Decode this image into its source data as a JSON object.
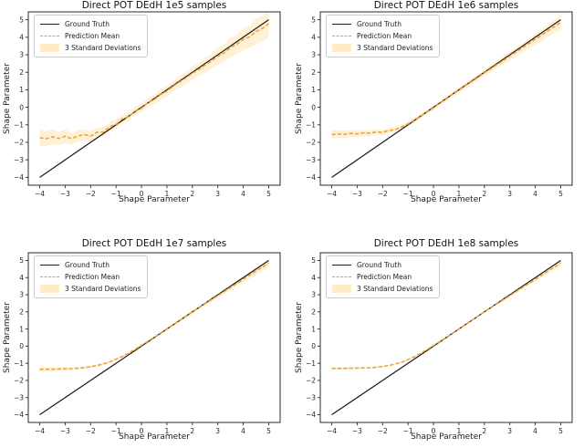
{
  "figure": {
    "background": "#ffffff",
    "xlabel": "Shape Parameter",
    "ylabel": "Shape Parameter",
    "colors": {
      "ground_truth": "#1a1a1a",
      "prediction_mean": "#e8a23a",
      "band_fill": "#ffa600",
      "band_opacity": 0.16,
      "tick_text": "#262626"
    },
    "legend": {
      "items": [
        {
          "label": "Ground Truth",
          "swatch": "solid-line-swatch"
        },
        {
          "label": "Prediction Mean",
          "swatch": "dashed-line-swatch"
        },
        {
          "label": "3 Standard Deviations",
          "swatch": "patch-swatch"
        }
      ]
    }
  },
  "chart_data": [
    {
      "type": "line",
      "title": "Direct POT DEdH 1e5 samples",
      "xlabel": "Shape Parameter",
      "ylabel": "Shape Parameter",
      "xlim": [
        -4.45,
        5.45
      ],
      "ylim": [
        -4.45,
        5.45
      ],
      "xticks": [
        -4,
        -3,
        -2,
        -1,
        0,
        1,
        2,
        3,
        4,
        5
      ],
      "yticks": [
        -4,
        -3,
        -2,
        -1,
        0,
        1,
        2,
        3,
        4,
        5
      ],
      "grid": false,
      "legend_position": "upper left",
      "series": [
        {
          "name": "Ground Truth",
          "style": "solid",
          "x": [
            -4,
            5
          ],
          "y": [
            -4,
            5
          ]
        },
        {
          "name": "Prediction Mean",
          "style": "dashed",
          "x": [
            -4,
            -3.75,
            -3.5,
            -3.25,
            -3,
            -2.75,
            -2.5,
            -2.25,
            -2,
            -1.75,
            -1.5,
            -1.25,
            -1,
            -0.75,
            -0.5,
            -0.25,
            0,
            0.25,
            0.5,
            0.75,
            1,
            1.25,
            1.5,
            1.75,
            2,
            2.25,
            2.5,
            2.75,
            3,
            3.25,
            3.5,
            3.75,
            4,
            4.25,
            4.5,
            4.75,
            5
          ],
          "y": [
            -1.73,
            -1.8,
            -1.69,
            -1.78,
            -1.65,
            -1.79,
            -1.64,
            -1.56,
            -1.64,
            -1.43,
            -1.41,
            -1.1,
            -0.97,
            -0.65,
            -0.53,
            -0.21,
            -0.06,
            0.27,
            0.44,
            0.73,
            0.92,
            1.21,
            1.45,
            1.68,
            1.95,
            2.15,
            2.42,
            2.63,
            2.92,
            3.1,
            3.42,
            3.6,
            3.88,
            4.02,
            4.32,
            4.5,
            4.78
          ]
        },
        {
          "name": "3 Standard Deviations",
          "style": "band",
          "x": [
            -4,
            -3.75,
            -3.5,
            -3.25,
            -3,
            -2.75,
            -2.5,
            -2.25,
            -2,
            -1.75,
            -1.5,
            -1.25,
            -1,
            -0.75,
            -0.5,
            -0.25,
            0,
            0.25,
            0.5,
            0.75,
            1,
            1.25,
            1.5,
            1.75,
            2,
            2.25,
            2.5,
            2.75,
            3,
            3.25,
            3.5,
            3.75,
            4,
            4.25,
            4.5,
            4.75,
            5
          ],
          "half_width": [
            0.5,
            0.42,
            0.44,
            0.36,
            0.39,
            0.32,
            0.34,
            0.29,
            0.31,
            0.26,
            0.29,
            0.25,
            0.27,
            0.24,
            0.26,
            0.24,
            0.26,
            0.25,
            0.28,
            0.27,
            0.3,
            0.29,
            0.34,
            0.33,
            0.38,
            0.37,
            0.43,
            0.42,
            0.49,
            0.48,
            0.56,
            0.55,
            0.64,
            0.63,
            0.72,
            0.73,
            0.82
          ]
        }
      ]
    },
    {
      "type": "line",
      "title": "Direct POT DEdH 1e6 samples",
      "xlabel": "Shape Parameter",
      "ylabel": "Shape Parameter",
      "xlim": [
        -4.45,
        5.45
      ],
      "ylim": [
        -4.45,
        5.45
      ],
      "xticks": [
        -4,
        -3,
        -2,
        -1,
        0,
        1,
        2,
        3,
        4,
        5
      ],
      "yticks": [
        -4,
        -3,
        -2,
        -1,
        0,
        1,
        2,
        3,
        4,
        5
      ],
      "grid": false,
      "legend_position": "upper left",
      "series": [
        {
          "name": "Ground Truth",
          "style": "solid",
          "x": [
            -4,
            5
          ],
          "y": [
            -4,
            5
          ]
        },
        {
          "name": "Prediction Mean",
          "style": "dashed",
          "x": [
            -4,
            -3.75,
            -3.5,
            -3.25,
            -3,
            -2.75,
            -2.5,
            -2.25,
            -2,
            -1.75,
            -1.5,
            -1.25,
            -1,
            -0.75,
            -0.5,
            -0.25,
            0,
            0.25,
            0.5,
            0.75,
            1,
            1.25,
            1.5,
            1.75,
            2,
            2.25,
            2.5,
            2.75,
            3,
            3.25,
            3.5,
            3.75,
            4,
            4.25,
            4.5,
            4.75,
            5
          ],
          "y": [
            -1.56,
            -1.52,
            -1.55,
            -1.49,
            -1.52,
            -1.46,
            -1.48,
            -1.41,
            -1.43,
            -1.33,
            -1.26,
            -1.12,
            -0.95,
            -0.72,
            -0.5,
            -0.26,
            -0.03,
            0.24,
            0.48,
            0.74,
            0.98,
            1.23,
            1.47,
            1.71,
            1.97,
            2.2,
            2.45,
            2.68,
            2.93,
            3.16,
            3.4,
            3.64,
            3.89,
            4.12,
            4.37,
            4.6,
            4.85
          ]
        },
        {
          "name": "3 Standard Deviations",
          "style": "band",
          "x": [
            -4,
            -3.75,
            -3.5,
            -3.25,
            -3,
            -2.75,
            -2.5,
            -2.25,
            -2,
            -1.75,
            -1.5,
            -1.25,
            -1,
            -0.75,
            -0.5,
            -0.25,
            0,
            0.25,
            0.5,
            0.75,
            1,
            1.25,
            1.5,
            1.75,
            2,
            2.25,
            2.5,
            2.75,
            3,
            3.25,
            3.5,
            3.75,
            4,
            4.25,
            4.5,
            4.75,
            5
          ],
          "half_width": [
            0.26,
            0.21,
            0.22,
            0.19,
            0.2,
            0.17,
            0.18,
            0.15,
            0.16,
            0.14,
            0.15,
            0.13,
            0.14,
            0.13,
            0.14,
            0.12,
            0.14,
            0.13,
            0.15,
            0.14,
            0.16,
            0.15,
            0.18,
            0.17,
            0.19,
            0.19,
            0.22,
            0.22,
            0.25,
            0.25,
            0.28,
            0.29,
            0.32,
            0.33,
            0.36,
            0.37,
            0.41
          ]
        }
      ]
    },
    {
      "type": "line",
      "title": "Direct POT DEdH 1e7 samples",
      "xlabel": "Shape Parameter",
      "ylabel": "Shape Parameter",
      "xlim": [
        -4.45,
        5.45
      ],
      "ylim": [
        -4.45,
        5.45
      ],
      "xticks": [
        -4,
        -3,
        -2,
        -1,
        0,
        1,
        2,
        3,
        4,
        5
      ],
      "yticks": [
        -4,
        -3,
        -2,
        -1,
        0,
        1,
        2,
        3,
        4,
        5
      ],
      "grid": false,
      "legend_position": "upper left",
      "series": [
        {
          "name": "Ground Truth",
          "style": "solid",
          "x": [
            -4,
            5
          ],
          "y": [
            -4,
            5
          ]
        },
        {
          "name": "Prediction Mean",
          "style": "dashed",
          "x": [
            -4,
            -3.75,
            -3.5,
            -3.25,
            -3,
            -2.75,
            -2.5,
            -2.25,
            -2,
            -1.75,
            -1.5,
            -1.25,
            -1,
            -0.75,
            -0.5,
            -0.25,
            0,
            0.25,
            0.5,
            0.75,
            1,
            1.25,
            1.5,
            1.75,
            2,
            2.25,
            2.5,
            2.75,
            3,
            3.25,
            3.5,
            3.75,
            4,
            4.25,
            4.5,
            4.75,
            5
          ],
          "y": [
            -1.35,
            -1.34,
            -1.34,
            -1.33,
            -1.32,
            -1.31,
            -1.29,
            -1.25,
            -1.2,
            -1.13,
            -1.04,
            -0.92,
            -0.76,
            -0.59,
            -0.4,
            -0.18,
            0.05,
            0.28,
            0.52,
            0.76,
            1.01,
            1.25,
            1.5,
            1.75,
            2.0,
            2.24,
            2.48,
            2.71,
            2.95,
            3.19,
            3.43,
            3.66,
            3.9,
            4.14,
            4.38,
            4.61,
            4.85
          ]
        },
        {
          "name": "3 Standard Deviations",
          "style": "band",
          "x": [
            -4,
            -3.75,
            -3.5,
            -3.25,
            -3,
            -2.75,
            -2.5,
            -2.25,
            -2,
            -1.75,
            -1.5,
            -1.25,
            -1,
            -0.75,
            -0.5,
            -0.25,
            0,
            0.25,
            0.5,
            0.75,
            1,
            1.25,
            1.5,
            1.75,
            2,
            2.25,
            2.5,
            2.75,
            3,
            3.25,
            3.5,
            3.75,
            4,
            4.25,
            4.5,
            4.75,
            5
          ],
          "half_width": [
            0.13,
            0.12,
            0.11,
            0.11,
            0.1,
            0.09,
            0.08,
            0.08,
            0.07,
            0.07,
            0.07,
            0.06,
            0.06,
            0.06,
            0.06,
            0.06,
            0.06,
            0.06,
            0.07,
            0.07,
            0.07,
            0.08,
            0.08,
            0.09,
            0.1,
            0.11,
            0.11,
            0.12,
            0.13,
            0.14,
            0.16,
            0.17,
            0.18,
            0.2,
            0.21,
            0.23,
            0.24
          ]
        }
      ]
    },
    {
      "type": "line",
      "title": "Direct POT DEdH 1e8 samples",
      "xlabel": "Shape Parameter",
      "ylabel": "Shape Parameter",
      "xlim": [
        -4.45,
        5.45
      ],
      "ylim": [
        -4.45,
        5.45
      ],
      "xticks": [
        -4,
        -3,
        -2,
        -1,
        0,
        1,
        2,
        3,
        4,
        5
      ],
      "yticks": [
        -4,
        -3,
        -2,
        -1,
        0,
        1,
        2,
        3,
        4,
        5
      ],
      "grid": false,
      "legend_position": "upper left",
      "series": [
        {
          "name": "Ground Truth",
          "style": "solid",
          "x": [
            -4,
            5
          ],
          "y": [
            -4,
            5
          ]
        },
        {
          "name": "Prediction Mean",
          "style": "dashed",
          "x": [
            -4,
            -3.75,
            -3.5,
            -3.25,
            -3,
            -2.75,
            -2.5,
            -2.25,
            -2,
            -1.75,
            -1.5,
            -1.25,
            -1,
            -0.75,
            -0.5,
            -0.25,
            0,
            0.25,
            0.5,
            0.75,
            1,
            1.25,
            1.5,
            1.75,
            2,
            2.25,
            2.5,
            2.75,
            3,
            3.25,
            3.5,
            3.75,
            4,
            4.25,
            4.5,
            4.75,
            5
          ],
          "y": [
            -1.3,
            -1.3,
            -1.29,
            -1.29,
            -1.28,
            -1.27,
            -1.26,
            -1.23,
            -1.19,
            -1.13,
            -1.04,
            -0.93,
            -0.78,
            -0.61,
            -0.41,
            -0.19,
            0.04,
            0.27,
            0.51,
            0.76,
            1.0,
            1.25,
            1.5,
            1.75,
            2.0,
            2.24,
            2.48,
            2.71,
            2.95,
            3.19,
            3.43,
            3.66,
            3.9,
            4.14,
            4.38,
            4.61,
            4.85
          ]
        },
        {
          "name": "3 Standard Deviations",
          "style": "band",
          "x": [
            -4,
            -3.75,
            -3.5,
            -3.25,
            -3,
            -2.75,
            -2.5,
            -2.25,
            -2,
            -1.75,
            -1.5,
            -1.25,
            -1,
            -0.75,
            -0.5,
            -0.25,
            0,
            0.25,
            0.5,
            0.75,
            1,
            1.25,
            1.5,
            1.75,
            2,
            2.25,
            2.5,
            2.75,
            3,
            3.25,
            3.5,
            3.75,
            4,
            4.25,
            4.5,
            4.75,
            5
          ],
          "half_width": [
            0.08,
            0.08,
            0.07,
            0.07,
            0.06,
            0.06,
            0.05,
            0.05,
            0.04,
            0.04,
            0.04,
            0.04,
            0.04,
            0.04,
            0.04,
            0.04,
            0.04,
            0.04,
            0.04,
            0.04,
            0.04,
            0.05,
            0.05,
            0.06,
            0.06,
            0.07,
            0.07,
            0.08,
            0.08,
            0.09,
            0.1,
            0.11,
            0.12,
            0.13,
            0.14,
            0.15,
            0.16
          ]
        }
      ]
    }
  ]
}
